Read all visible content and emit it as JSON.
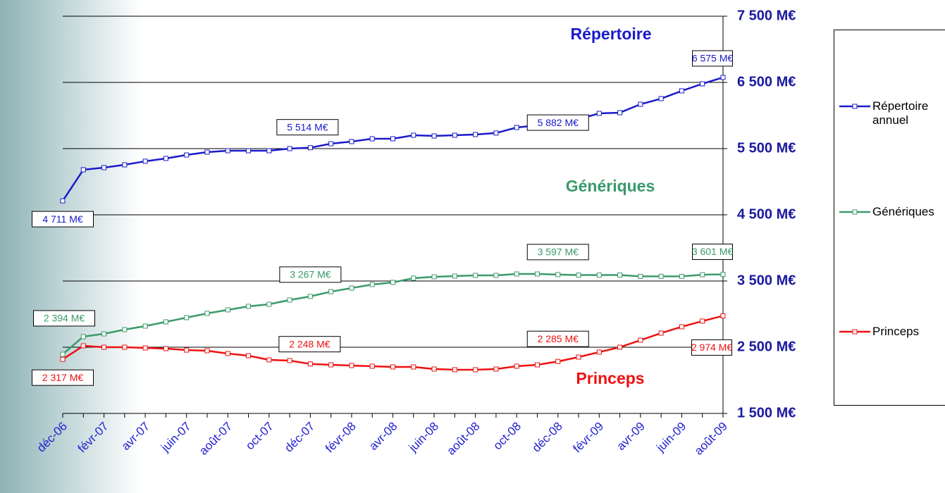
{
  "chart_data": {
    "type": "line",
    "annotations": [
      "Répertoire",
      "Génériques",
      "Princeps"
    ],
    "categories": [
      "déc-06",
      null,
      "févr-07",
      null,
      "avr-07",
      null,
      "juin-07",
      null,
      "août-07",
      null,
      "oct-07",
      null,
      "déc-07",
      null,
      "févr-08",
      null,
      "avr-08",
      null,
      "juin-08",
      null,
      "août-08",
      null,
      "oct-08",
      null,
      "déc-08",
      null,
      "févr-09",
      null,
      "avr-09",
      null,
      "juin-09",
      null,
      "août-09"
    ],
    "ylim": [
      1500,
      7500
    ],
    "yticks": [
      {
        "value": 1500,
        "label": "1 500 M€"
      },
      {
        "value": 2500,
        "label": "2 500 M€"
      },
      {
        "value": 3500,
        "label": "3 500 M€"
      },
      {
        "value": 4500,
        "label": "4 500 M€"
      },
      {
        "value": 5500,
        "label": "5 500 M€"
      },
      {
        "value": 6500,
        "label": "6 500 M€"
      },
      {
        "value": 7500,
        "label": "7 500 M€"
      }
    ],
    "grid": true,
    "legend": "right",
    "series": [
      {
        "name": "Répertoire annuel",
        "color": "#1a1acc",
        "values": [
          4711,
          5181,
          5213,
          5255,
          5309,
          5351,
          5404,
          5447,
          5468,
          5468,
          5468,
          5500,
          5514,
          5574,
          5606,
          5649,
          5649,
          5702,
          5691,
          5702,
          5713,
          5735,
          5819,
          5851,
          5882,
          5946,
          6032,
          6043,
          6170,
          6255,
          6372,
          6479,
          6575
        ],
        "value_labels": [
          "4 711 M€",
          null,
          null,
          null,
          null,
          null,
          null,
          null,
          null,
          null,
          null,
          null,
          "5 514 M€",
          null,
          null,
          null,
          null,
          null,
          null,
          null,
          null,
          null,
          null,
          null,
          "5 882 M€",
          null,
          null,
          null,
          null,
          null,
          null,
          null,
          "6 575 M€"
        ]
      },
      {
        "name": "Génériques",
        "color": "#3a9a6a",
        "values": [
          2394,
          2660,
          2702,
          2766,
          2819,
          2883,
          2947,
          3011,
          3064,
          3117,
          3149,
          3213,
          3267,
          3340,
          3394,
          3447,
          3479,
          3543,
          3564,
          3574,
          3585,
          3585,
          3606,
          3606,
          3597,
          3590,
          3590,
          3590,
          3570,
          3570,
          3570,
          3595,
          3601
        ],
        "value_labels": [
          "2 394 M€",
          null,
          null,
          null,
          null,
          null,
          null,
          null,
          null,
          null,
          null,
          null,
          "3 267 M€",
          null,
          null,
          null,
          null,
          null,
          null,
          null,
          null,
          null,
          null,
          null,
          "3 597 M€",
          null,
          null,
          null,
          null,
          null,
          null,
          null,
          "3 601 M€"
        ]
      },
      {
        "name": "Princeps",
        "color": "#ee1111",
        "values": [
          2317,
          2521,
          2500,
          2500,
          2489,
          2479,
          2457,
          2447,
          2404,
          2372,
          2309,
          2298,
          2248,
          2234,
          2223,
          2213,
          2202,
          2202,
          2170,
          2160,
          2160,
          2170,
          2213,
          2234,
          2285,
          2351,
          2426,
          2500,
          2606,
          2713,
          2809,
          2894,
          2974
        ],
        "value_labels": [
          "2 317 M€",
          null,
          null,
          null,
          null,
          null,
          null,
          null,
          null,
          null,
          null,
          null,
          "2 248 M€",
          null,
          null,
          null,
          null,
          null,
          null,
          null,
          null,
          null,
          null,
          null,
          "2 285 M€",
          null,
          null,
          null,
          null,
          null,
          null,
          null,
          "2 974 M€"
        ]
      }
    ]
  }
}
